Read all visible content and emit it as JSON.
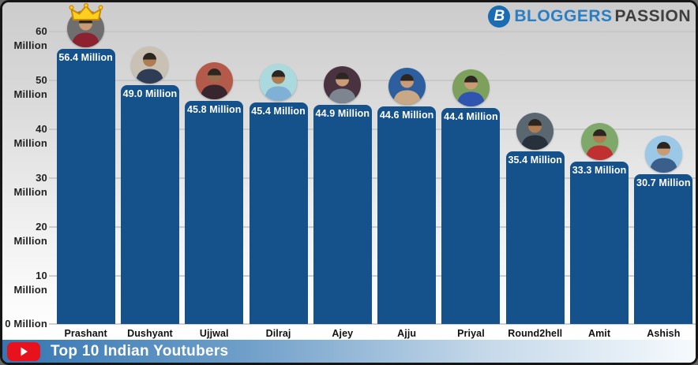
{
  "logo": {
    "icon_letter": "B",
    "part1": "BLOGGERS",
    "part2": "PASSION"
  },
  "banner": {
    "title": "Top 10 Indian Youtubers"
  },
  "colors": {
    "bar": "#15518a",
    "grid": "#c5c5c5",
    "axis_text": "#222222",
    "value_text": "#ffffff",
    "banner_left": "#3576b2",
    "banner_right": "#f6fafd",
    "youtube_red": "#e8121c",
    "logo_blue": "#1a6cb3",
    "logo_text_blue": "#2a7fc4",
    "logo_text_dark": "#3f3f3f"
  },
  "chart_data": {
    "type": "bar",
    "title": "Top 10 Indian Youtubers",
    "xlabel": "",
    "ylabel": "",
    "ylim": [
      0,
      60
    ],
    "ytick_step": 10,
    "grid": true,
    "legend": false,
    "yticks": [
      "0 Million",
      "10 Million",
      "20 Million",
      "30 Million",
      "40 Million",
      "50 Million",
      "60 Million"
    ],
    "categories": [
      "Prashant",
      "Dushyant",
      "Ujjwal",
      "Dilraj",
      "Ajey",
      "Ajju",
      "Priyal",
      "Round2hell",
      "Amit",
      "Ashish"
    ],
    "values": [
      56.4,
      49.0,
      45.8,
      45.4,
      44.9,
      44.6,
      44.4,
      35.4,
      33.3,
      30.7
    ],
    "value_labels": [
      "56.4 Million",
      "49.0 Million",
      "45.8 Million",
      "45.4 Million",
      "44.9 Million",
      "44.6 Million",
      "44.4 Million",
      "35.4 Million",
      "33.3 Million",
      "30.7 Million"
    ],
    "avatars": [
      {
        "name": "avatar-prashant",
        "crown": true,
        "bg": "#6e6e6e",
        "fg": "#8c2230",
        "skin": "#c99b76"
      },
      {
        "name": "avatar-dushyant",
        "crown": false,
        "bg": "#c9c2b4",
        "fg": "#2e3c55",
        "skin": "#b07c52"
      },
      {
        "name": "avatar-ujjwal",
        "crown": false,
        "bg": "#b45a4a",
        "fg": "#38262e",
        "skin": "#9a6b4c"
      },
      {
        "name": "avatar-dilraj",
        "crown": false,
        "bg": "#aad9de",
        "fg": "#7fb0d6",
        "skin": "#b07c52"
      },
      {
        "name": "avatar-ajey",
        "crown": false,
        "bg": "#4a3340",
        "fg": "#7d8591",
        "skin": "#c99b76"
      },
      {
        "name": "avatar-ajju",
        "crown": false,
        "bg": "#2d5f9e",
        "fg": "#c9a886",
        "skin": "#c99b76"
      },
      {
        "name": "avatar-priyal",
        "crown": false,
        "bg": "#7da05c",
        "fg": "#2f55b0",
        "skin": "#c99b76"
      },
      {
        "name": "avatar-round2hell",
        "crown": false,
        "bg": "#5a6670",
        "fg": "#27313c",
        "skin": "#b07c52"
      },
      {
        "name": "avatar-amit",
        "crown": false,
        "bg": "#7fa96b",
        "fg": "#c03030",
        "skin": "#b07c52"
      },
      {
        "name": "avatar-ashish",
        "crown": false,
        "bg": "#9cc8e8",
        "fg": "#3a5f8a",
        "skin": "#c99b76"
      }
    ]
  }
}
